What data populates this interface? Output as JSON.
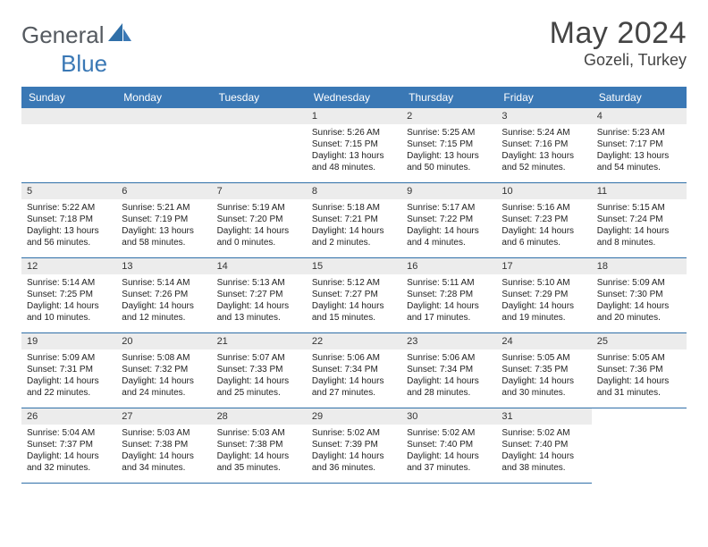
{
  "brand": {
    "general": "General",
    "blue": "Blue"
  },
  "title": "May 2024",
  "location": "Gozeli, Turkey",
  "colors": {
    "header_bg": "#3a78b5",
    "daynum_bg": "#ececec",
    "border": "#2f6fa8",
    "text": "#222222",
    "title_text": "#444444"
  },
  "weekdays": [
    "Sunday",
    "Monday",
    "Tuesday",
    "Wednesday",
    "Thursday",
    "Friday",
    "Saturday"
  ],
  "leading_blanks": 3,
  "days": [
    {
      "n": "1",
      "sr": "5:26 AM",
      "ss": "7:15 PM",
      "dl": "13 hours and 48 minutes."
    },
    {
      "n": "2",
      "sr": "5:25 AM",
      "ss": "7:15 PM",
      "dl": "13 hours and 50 minutes."
    },
    {
      "n": "3",
      "sr": "5:24 AM",
      "ss": "7:16 PM",
      "dl": "13 hours and 52 minutes."
    },
    {
      "n": "4",
      "sr": "5:23 AM",
      "ss": "7:17 PM",
      "dl": "13 hours and 54 minutes."
    },
    {
      "n": "5",
      "sr": "5:22 AM",
      "ss": "7:18 PM",
      "dl": "13 hours and 56 minutes."
    },
    {
      "n": "6",
      "sr": "5:21 AM",
      "ss": "7:19 PM",
      "dl": "13 hours and 58 minutes."
    },
    {
      "n": "7",
      "sr": "5:19 AM",
      "ss": "7:20 PM",
      "dl": "14 hours and 0 minutes."
    },
    {
      "n": "8",
      "sr": "5:18 AM",
      "ss": "7:21 PM",
      "dl": "14 hours and 2 minutes."
    },
    {
      "n": "9",
      "sr": "5:17 AM",
      "ss": "7:22 PM",
      "dl": "14 hours and 4 minutes."
    },
    {
      "n": "10",
      "sr": "5:16 AM",
      "ss": "7:23 PM",
      "dl": "14 hours and 6 minutes."
    },
    {
      "n": "11",
      "sr": "5:15 AM",
      "ss": "7:24 PM",
      "dl": "14 hours and 8 minutes."
    },
    {
      "n": "12",
      "sr": "5:14 AM",
      "ss": "7:25 PM",
      "dl": "14 hours and 10 minutes."
    },
    {
      "n": "13",
      "sr": "5:14 AM",
      "ss": "7:26 PM",
      "dl": "14 hours and 12 minutes."
    },
    {
      "n": "14",
      "sr": "5:13 AM",
      "ss": "7:27 PM",
      "dl": "14 hours and 13 minutes."
    },
    {
      "n": "15",
      "sr": "5:12 AM",
      "ss": "7:27 PM",
      "dl": "14 hours and 15 minutes."
    },
    {
      "n": "16",
      "sr": "5:11 AM",
      "ss": "7:28 PM",
      "dl": "14 hours and 17 minutes."
    },
    {
      "n": "17",
      "sr": "5:10 AM",
      "ss": "7:29 PM",
      "dl": "14 hours and 19 minutes."
    },
    {
      "n": "18",
      "sr": "5:09 AM",
      "ss": "7:30 PM",
      "dl": "14 hours and 20 minutes."
    },
    {
      "n": "19",
      "sr": "5:09 AM",
      "ss": "7:31 PM",
      "dl": "14 hours and 22 minutes."
    },
    {
      "n": "20",
      "sr": "5:08 AM",
      "ss": "7:32 PM",
      "dl": "14 hours and 24 minutes."
    },
    {
      "n": "21",
      "sr": "5:07 AM",
      "ss": "7:33 PM",
      "dl": "14 hours and 25 minutes."
    },
    {
      "n": "22",
      "sr": "5:06 AM",
      "ss": "7:34 PM",
      "dl": "14 hours and 27 minutes."
    },
    {
      "n": "23",
      "sr": "5:06 AM",
      "ss": "7:34 PM",
      "dl": "14 hours and 28 minutes."
    },
    {
      "n": "24",
      "sr": "5:05 AM",
      "ss": "7:35 PM",
      "dl": "14 hours and 30 minutes."
    },
    {
      "n": "25",
      "sr": "5:05 AM",
      "ss": "7:36 PM",
      "dl": "14 hours and 31 minutes."
    },
    {
      "n": "26",
      "sr": "5:04 AM",
      "ss": "7:37 PM",
      "dl": "14 hours and 32 minutes."
    },
    {
      "n": "27",
      "sr": "5:03 AM",
      "ss": "7:38 PM",
      "dl": "14 hours and 34 minutes."
    },
    {
      "n": "28",
      "sr": "5:03 AM",
      "ss": "7:38 PM",
      "dl": "14 hours and 35 minutes."
    },
    {
      "n": "29",
      "sr": "5:02 AM",
      "ss": "7:39 PM",
      "dl": "14 hours and 36 minutes."
    },
    {
      "n": "30",
      "sr": "5:02 AM",
      "ss": "7:40 PM",
      "dl": "14 hours and 37 minutes."
    },
    {
      "n": "31",
      "sr": "5:02 AM",
      "ss": "7:40 PM",
      "dl": "14 hours and 38 minutes."
    }
  ],
  "labels": {
    "sunrise": "Sunrise: ",
    "sunset": "Sunset: ",
    "daylight": "Daylight: "
  }
}
